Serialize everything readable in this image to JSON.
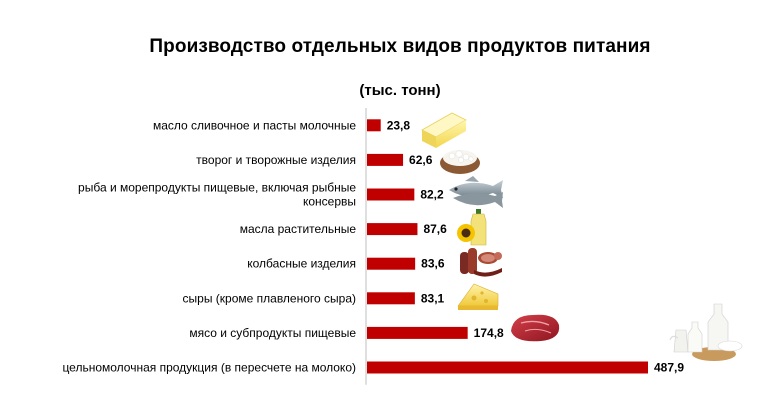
{
  "chart_data": {
    "type": "bar",
    "orientation": "horizontal",
    "title": "Производство отдельных видов продуктов питания",
    "subtitle": "(тыс. тонн)",
    "categories": [
      "масло сливочное и пасты молочные",
      "творог и творожные изделия",
      "рыба и морепродукты пищевые, включая рыбные консервы",
      "масла растительные",
      "колбасные изделия",
      "сыры (кроме плавленого сыра)",
      "мясо и субпродукты пищевые",
      "цельномолочная продукция (в пересчете на молоко)"
    ],
    "category_lines": [
      [
        "масло сливочное и пасты молочные"
      ],
      [
        "творог и творожные изделия"
      ],
      [
        "рыба и морепродукты пищевые, включая рыбные",
        "консервы"
      ],
      [
        "масла растительные"
      ],
      [
        "колбасные изделия"
      ],
      [
        "сыры (кроме плавленого сыра)"
      ],
      [
        "мясо и субпродукты пищевые"
      ],
      [
        "цельномолочная продукция (в пересчете на молоко)"
      ]
    ],
    "values": [
      23.8,
      62.6,
      82.2,
      87.6,
      83.6,
      83.1,
      174.8,
      487.9
    ],
    "value_labels": [
      "23,8",
      "62,6",
      "82,2",
      "87,6",
      "83,6",
      "83,1",
      "174,8",
      "487,9"
    ],
    "icons": [
      "butter-icon",
      "cottage-cheese-icon",
      "fish-icon",
      "sunflower-oil-icon",
      "sausage-icon",
      "cheese-icon",
      "meat-icon",
      "dairy-icon"
    ],
    "bar_color": "#C00000",
    "axis_color": "#BFBFBF",
    "grid": false,
    "legend": "none"
  }
}
